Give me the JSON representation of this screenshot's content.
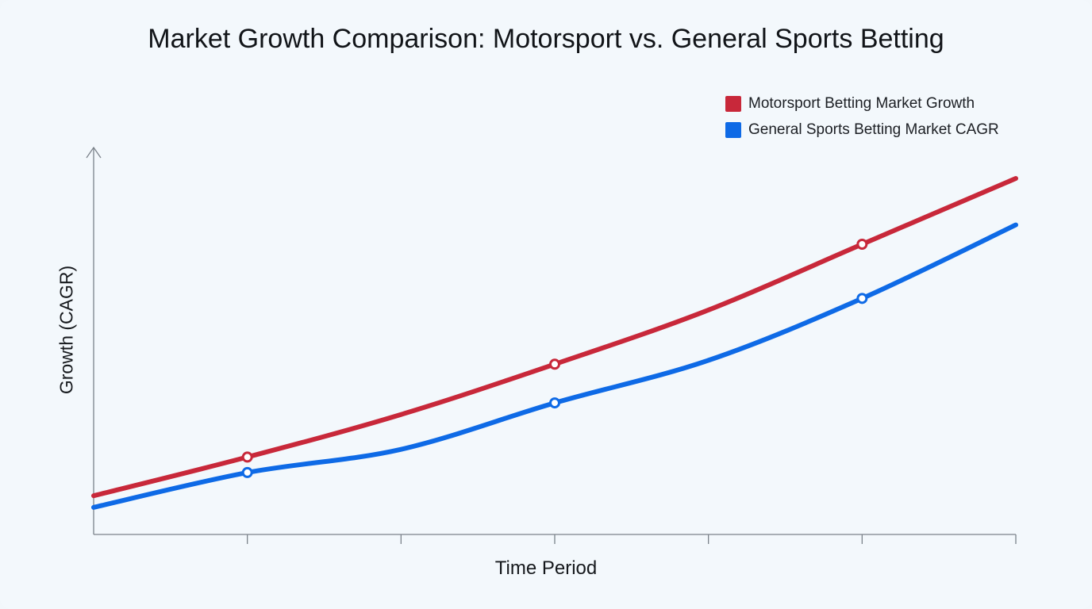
{
  "chart_data": {
    "type": "line",
    "title": "Market Growth Comparison: Motorsport vs. General Sports Betting",
    "xlabel": "Time Period",
    "ylabel": "Growth (CAGR)",
    "x": [
      0,
      1,
      2,
      3,
      4,
      5,
      6
    ],
    "xlim": [
      0,
      6
    ],
    "ylim": [
      0,
      10
    ],
    "x_ticks": [
      1,
      2,
      3,
      4,
      5,
      6
    ],
    "grid": false,
    "legend_position": "top-right",
    "series": [
      {
        "name": "Motorsport Betting Market Growth",
        "color": "#c8283a",
        "values": [
          1.0,
          2.0,
          3.1,
          4.4,
          5.8,
          7.5,
          9.2
        ],
        "markers": [
          1,
          3,
          5
        ]
      },
      {
        "name": "General Sports Betting Market CAGR",
        "color": "#0e6ae6",
        "values": [
          0.7,
          1.6,
          2.2,
          3.4,
          4.5,
          6.1,
          8.0
        ],
        "markers": [
          1,
          3,
          5
        ]
      }
    ]
  }
}
